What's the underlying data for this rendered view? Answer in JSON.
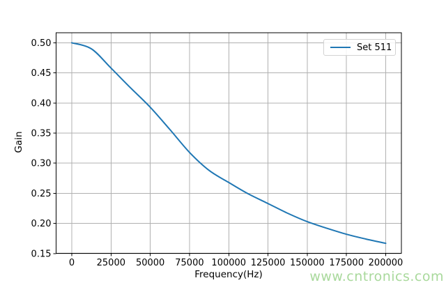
{
  "figure": {
    "background": "#ffffff",
    "watermark": {
      "text": "www.cntronics.com",
      "color": "#a9d99c"
    }
  },
  "chart_data": {
    "type": "line",
    "title": "",
    "xlabel": "Frequency(Hz)",
    "ylabel": "Gain",
    "grid": true,
    "grid_color": "#b0b0b0",
    "frame_color": "#000000",
    "legend": {
      "position": "upper right",
      "entries": [
        {
          "label": "Set 511",
          "color": "#1f77b4"
        }
      ]
    },
    "xlim": [
      -10000,
      210000
    ],
    "ylim": [
      0.1504,
      0.5167
    ],
    "xticks": {
      "values": [
        0,
        25000,
        50000,
        75000,
        100000,
        125000,
        150000,
        175000,
        200000
      ],
      "labels": [
        "0",
        "25000",
        "50000",
        "75000",
        "100000",
        "125000",
        "150000",
        "175000",
        "200000"
      ]
    },
    "yticks": {
      "values": [
        0.15,
        0.2,
        0.25,
        0.3,
        0.35,
        0.4,
        0.45,
        0.5
      ],
      "labels": [
        "0.15",
        "0.20",
        "0.25",
        "0.30",
        "0.35",
        "0.40",
        "0.45",
        "0.50"
      ]
    },
    "series": [
      {
        "name": "Set 511",
        "color": "#1f77b4",
        "x": [
          0,
          12500,
          25000,
          37500,
          50000,
          62500,
          75000,
          87500,
          100000,
          112500,
          125000,
          137500,
          150000,
          162500,
          175000,
          187500,
          200000
        ],
        "y": [
          0.5,
          0.49,
          0.458,
          0.425,
          0.393,
          0.356,
          0.318,
          0.288,
          0.268,
          0.249,
          0.233,
          0.217,
          0.203,
          0.192,
          0.182,
          0.174,
          0.167
        ]
      }
    ]
  }
}
